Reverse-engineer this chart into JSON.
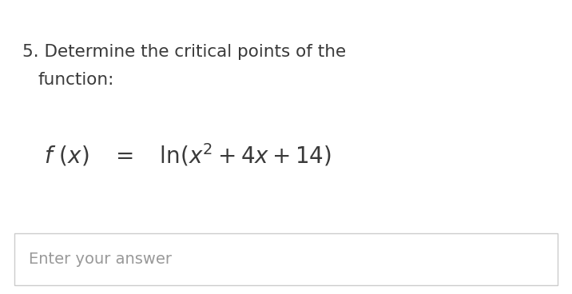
{
  "background_color": "#ffffff",
  "question_number": "5.",
  "question_line1": "Determine the critical points of the",
  "question_line2": "function:",
  "answer_placeholder": "Enter your answer",
  "text_color": "#3a3a3a",
  "placeholder_color": "#999999",
  "box_border_color": "#cccccc",
  "question_fontsize": 15.5,
  "formula_fontsize": 17,
  "placeholder_fontsize": 14,
  "fig_width": 7.16,
  "fig_height": 3.68,
  "dpi": 100
}
